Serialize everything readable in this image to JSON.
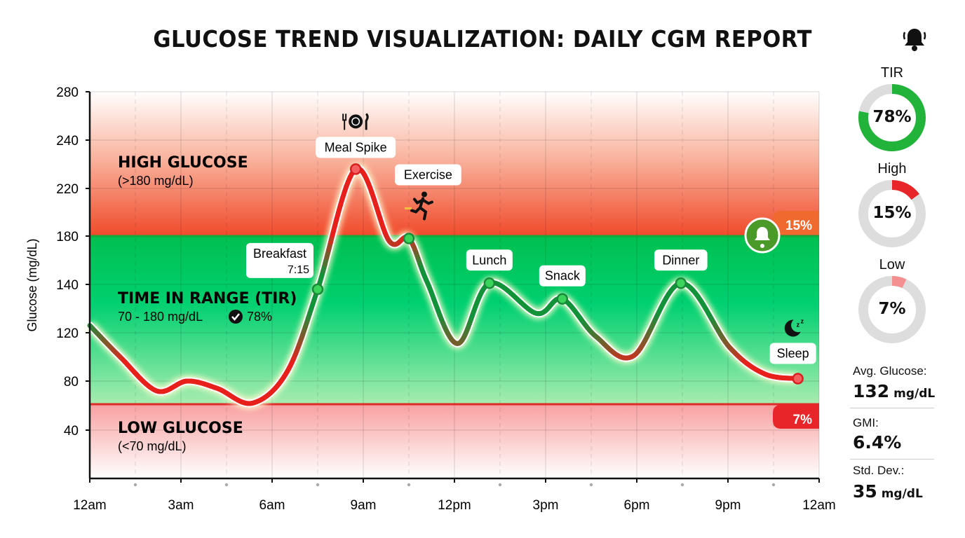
{
  "title": "GLUCOSE TREND VISUALIZATION: DAILY CGM REPORT",
  "icons": {
    "header": "bell-icon",
    "alert": "bell-icon",
    "meal": "fork-plate-knife-icon",
    "exercise": "running-person-icon",
    "sleep": "moon-zzz-icon",
    "check": "check-circle-icon"
  },
  "colors": {
    "high": "#f04a2a",
    "in_range": "#00c860",
    "low": "#f88a8a",
    "line_red": "#e8201c",
    "line_green": "#12933a",
    "threshold_green": "#14a83c",
    "threshold_red": "#e02a2a"
  },
  "chart_data": {
    "type": "line",
    "title": "GLUCOSE TREND VISUALIZATION: DAILY CGM REPORT",
    "xlabel": "",
    "ylabel": "Glucose (mg/dL)",
    "x_ticks": [
      "12am",
      "3am",
      "6am",
      "9am",
      "12pm",
      "3pm",
      "6pm",
      "9pm",
      "12am"
    ],
    "y_ticks": [
      280,
      240,
      220,
      180,
      140,
      120,
      80,
      40
    ],
    "xlim_hours": [
      0,
      24
    ],
    "grid": true,
    "thresholds": {
      "high": 180,
      "low": 70
    },
    "series": [
      {
        "x_hours": [
          0,
          1,
          2.2,
          3.2,
          4.2,
          5.35,
          6.5,
          7.5,
          8.75,
          9.85,
          10.5,
          11.1,
          12.1,
          13.15,
          14.7,
          15.55,
          16.65,
          17.9,
          19.45,
          21.05,
          22.2,
          23.3
        ],
        "values": [
          123,
          100,
          72,
          80,
          74,
          62,
          88,
          138,
          228,
          176,
          178,
          142,
          111,
          141,
          128,
          134,
          117,
          101,
          141,
          108,
          86,
          82
        ]
      }
    ],
    "zones": [
      {
        "title": "HIGH GLUCOSE",
        "subtitle": "(>180 mg/dL)",
        "percent_badge": "15%"
      },
      {
        "title": "TIME IN RANGE (TIR)",
        "subtitle": "70 - 180 mg/dL",
        "percent": "78%"
      },
      {
        "title": "LOW GLUCOSE",
        "subtitle": "(<70 mg/dL)",
        "percent_badge": "7%"
      }
    ],
    "annotations": [
      {
        "label": "Breakfast",
        "sub": "7:15",
        "point_index": 7
      },
      {
        "label": "Meal Spike",
        "point_index": 8
      },
      {
        "label": "Exercise",
        "point_index": 10
      },
      {
        "label": "Lunch",
        "point_index": 13
      },
      {
        "label": "Snack",
        "point_index": 15
      },
      {
        "label": "Dinner",
        "point_index": 18
      },
      {
        "label": "Sleep",
        "point_index": 21
      }
    ]
  },
  "sidebar": {
    "rings": [
      {
        "label": "TIR",
        "value": "78%",
        "fraction": 0.78,
        "color": "#22b33a"
      },
      {
        "label": "High",
        "value": "15%",
        "fraction": 0.15,
        "color": "#e8262a"
      },
      {
        "label": "Low",
        "value": "7%",
        "fraction": 0.07,
        "color": "#f59090"
      }
    ],
    "stats": [
      {
        "label": "Avg. Glucose:",
        "value": "132",
        "unit": "mg/dL"
      },
      {
        "label": "GMI:",
        "value": "6.4%",
        "unit": ""
      },
      {
        "label": "Std. Dev.:",
        "value": "35",
        "unit": "mg/dL"
      }
    ]
  }
}
